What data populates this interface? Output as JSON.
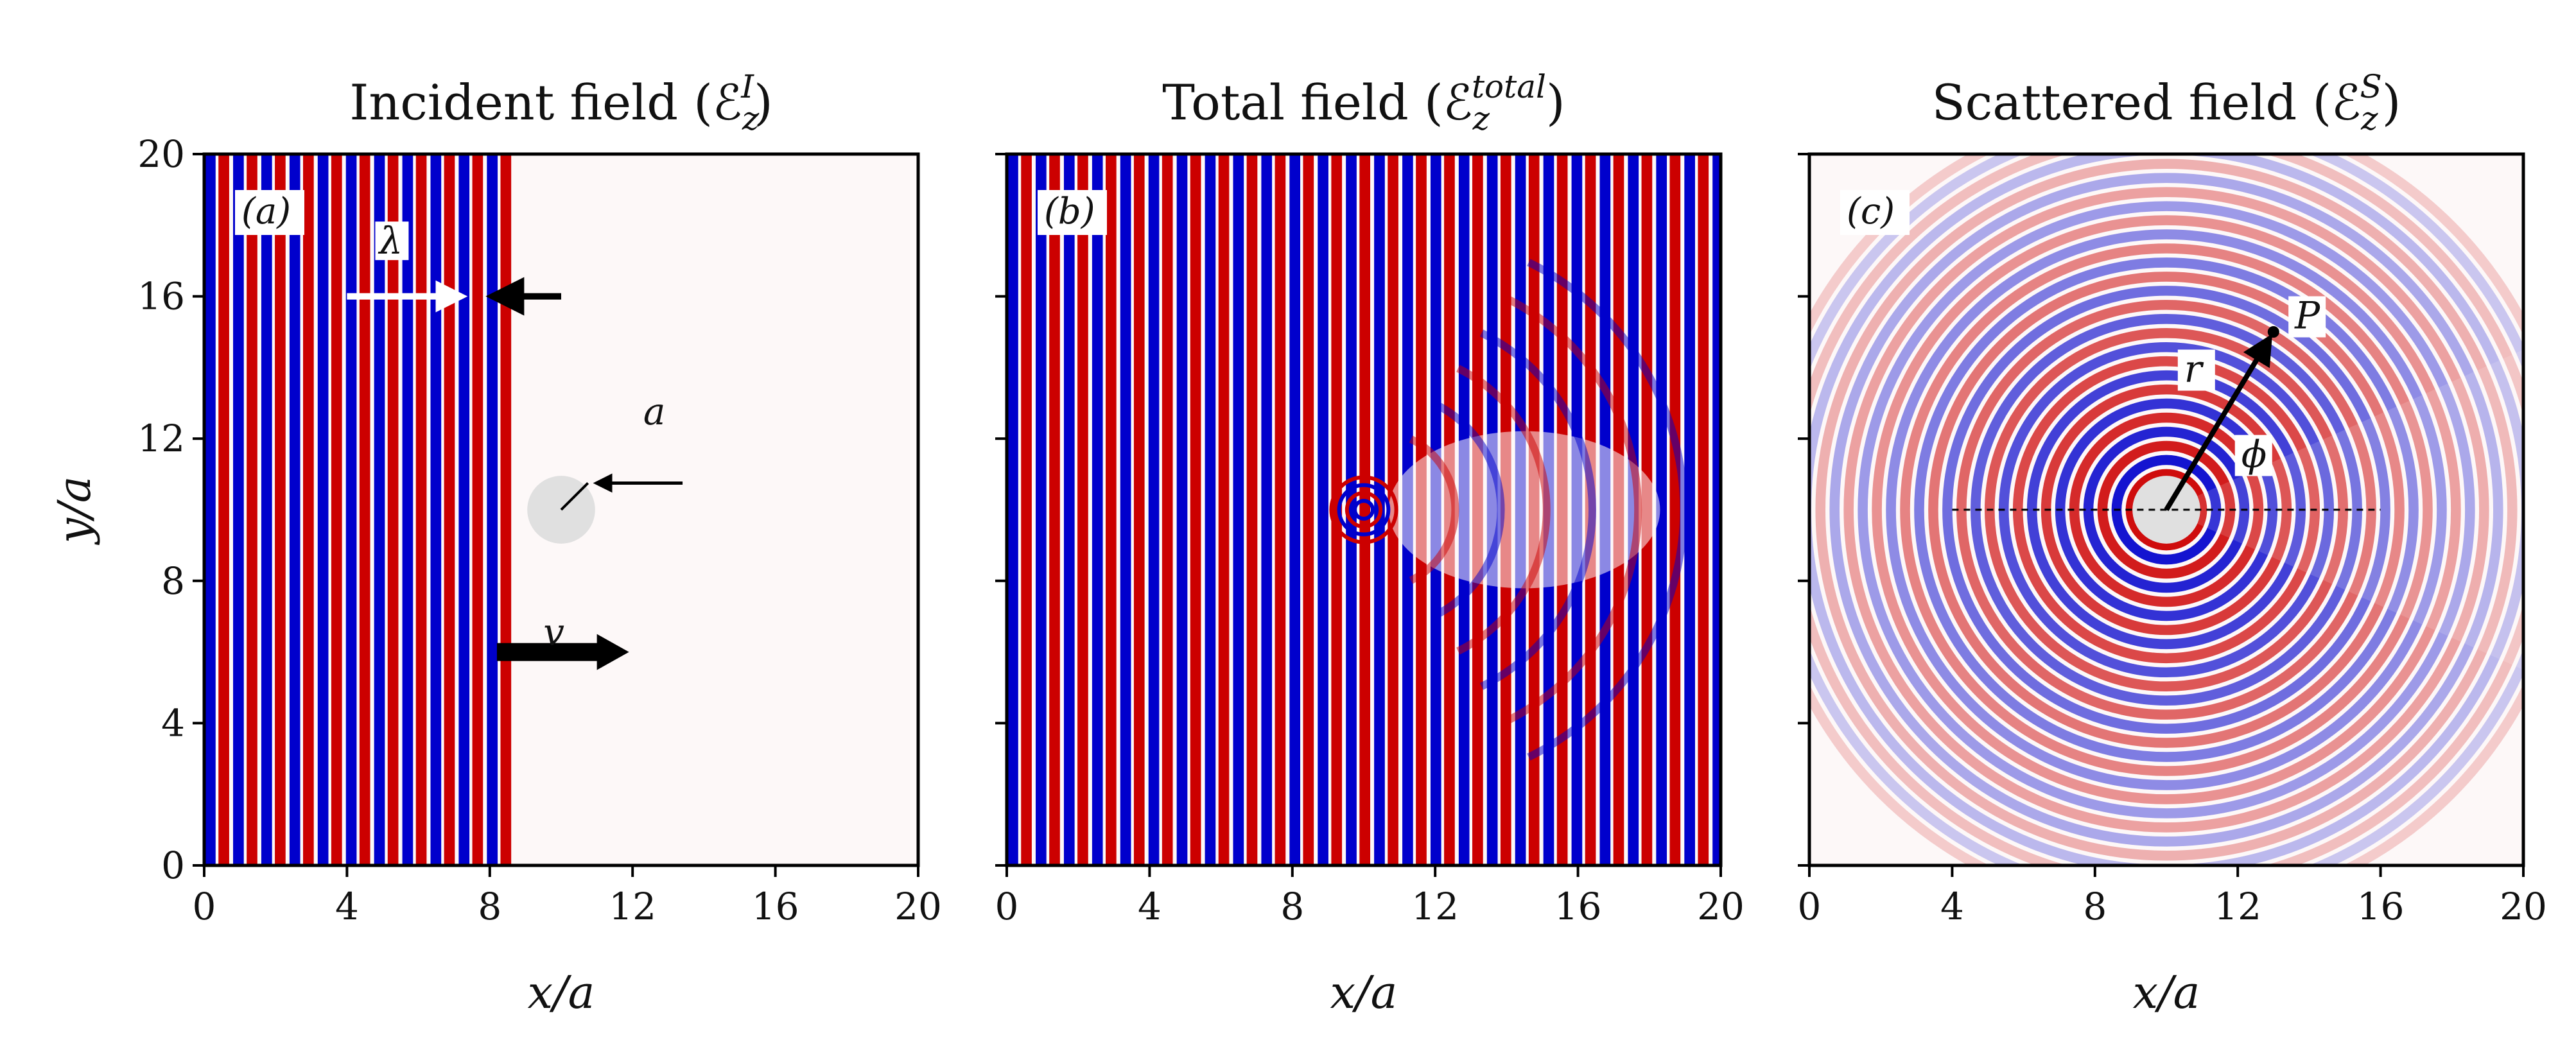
{
  "chart_data": [
    {
      "type": "heatmap",
      "panel_label": "(a)",
      "title": "Incident field (ℰ",
      "title_sub": "z",
      "title_sup": "I",
      "title_end": ")",
      "xlabel": "x/a",
      "ylabel": "y/a",
      "xlim": [
        0,
        20
      ],
      "ylim": [
        0,
        20
      ],
      "xticks": [
        0,
        4,
        8,
        12,
        16,
        20
      ],
      "yticks": [
        0,
        4,
        8,
        12,
        16,
        20
      ],
      "field": "plane wave, vertical fronts, present for 0 ≤ x ≤ 8",
      "wave_front_x": 8,
      "cylinder": {
        "cx": 10,
        "cy": 10
      },
      "annotations": [
        {
          "text": "λ",
          "x": 4.9,
          "y": 17.2
        },
        {
          "text": "a",
          "x": 12.3,
          "y": 12.4
        },
        {
          "text": "v",
          "x": 9.5,
          "y": 6.2
        }
      ]
    },
    {
      "type": "heatmap",
      "panel_label": "(b)",
      "title": "Total field (ℰ",
      "title_sub": "z",
      "title_sup": "total",
      "title_end": ")",
      "xlabel": "x/a",
      "xlim": [
        0,
        20
      ],
      "ylim": [
        0,
        20
      ],
      "xticks": [
        0,
        4,
        8,
        12,
        16,
        20
      ],
      "yticks": [
        0,
        4,
        8,
        12,
        16,
        20
      ],
      "cylinder": {
        "cx": 10,
        "cy": 10
      }
    },
    {
      "type": "heatmap",
      "panel_label": "(c)",
      "title": "Scattered field (ℰ",
      "title_sub": "z",
      "title_sup": "S",
      "title_end": ")",
      "xlabel": "x/a",
      "xlim": [
        0,
        20
      ],
      "ylim": [
        0,
        20
      ],
      "xticks": [
        0,
        4,
        8,
        12,
        16,
        20
      ],
      "yticks": [
        0,
        4,
        8,
        12,
        16,
        20
      ],
      "cylinder": {
        "cx": 10,
        "cy": 10
      },
      "point_P": {
        "x": 13,
        "y": 15
      },
      "reference_line": {
        "x_from": 4,
        "x_to": 16,
        "y": 10
      },
      "annotations": [
        {
          "text": "P",
          "x": 13.6,
          "y": 15.1
        },
        {
          "text": "r",
          "x": 10.5,
          "y": 13.6
        },
        {
          "text": "ϕ",
          "x": 12.1,
          "y": 11.2
        }
      ]
    }
  ],
  "colors": {
    "positive": "#cc0000",
    "negative": "#0000cc",
    "zero": "#fdf8f8",
    "cylinder": "#e0e0e0"
  }
}
